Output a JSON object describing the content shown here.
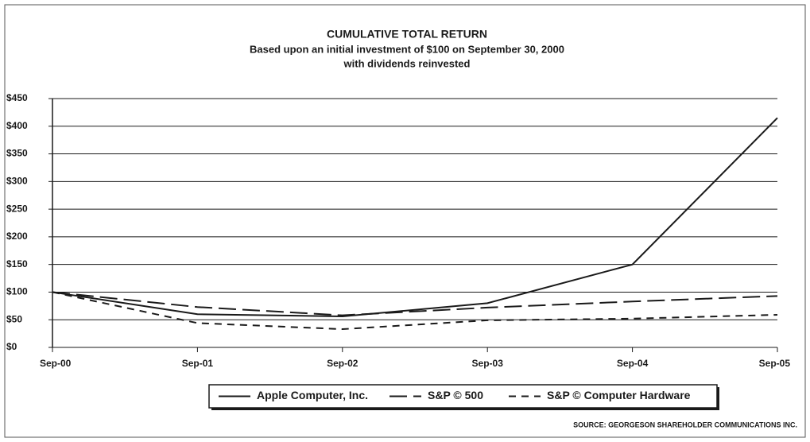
{
  "chart_data": {
    "type": "line",
    "title": "CUMULATIVE TOTAL RETURN",
    "subtitle": [
      "Based upon an initial investment of $100 on September 30, 2000",
      "with dividends reinvested"
    ],
    "source": "SOURCE: GEORGESON SHAREHOLDER COMMUNICATIONS INC.",
    "categories": [
      "Sep-00",
      "Sep-01",
      "Sep-02",
      "Sep-03",
      "Sep-04",
      "Sep-05"
    ],
    "series": [
      {
        "name": "Apple Computer, Inc.",
        "color": "#1a1a1a",
        "style": "solid",
        "values": [
          100,
          60,
          56,
          80,
          150,
          415
        ]
      },
      {
        "name": "S&P © 500",
        "color": "#1a1a1a",
        "style": "long-dash",
        "values": [
          100,
          73,
          58,
          72,
          83,
          93
        ]
      },
      {
        "name": "S&P © Computer Hardware",
        "color": "#1a1a1a",
        "style": "short-dash",
        "values": [
          100,
          44,
          33,
          49,
          52,
          59
        ]
      }
    ],
    "ylim": [
      0,
      450
    ],
    "yticks": [
      {
        "value": 0,
        "label": "$0"
      },
      {
        "value": 50,
        "label": "$50"
      },
      {
        "value": 100,
        "label": "$100"
      },
      {
        "value": 150,
        "label": "$150"
      },
      {
        "value": 200,
        "label": "$200"
      },
      {
        "value": 250,
        "label": "$250"
      },
      {
        "value": 300,
        "label": "$300"
      },
      {
        "value": 350,
        "label": "$350"
      },
      {
        "value": 400,
        "label": "$400"
      },
      {
        "value": 450,
        "label": "$450"
      }
    ],
    "grid": true,
    "legend": "bottom"
  }
}
